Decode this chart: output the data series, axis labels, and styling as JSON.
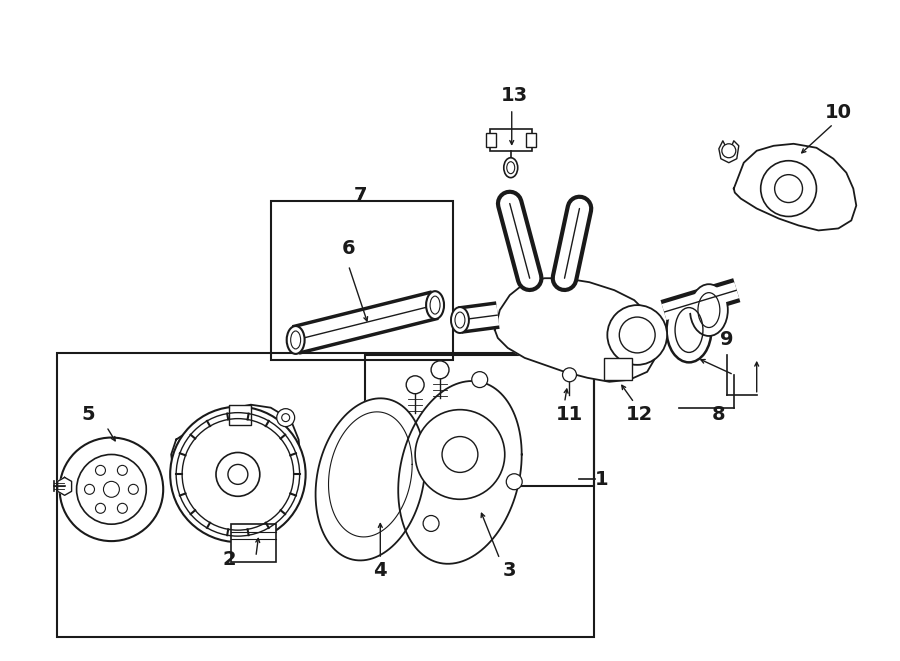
{
  "bg_color": "#ffffff",
  "line_color": "#1a1a1a",
  "fig_width": 9.0,
  "fig_height": 6.61,
  "dpi": 100,
  "xlim": [
    0,
    900
  ],
  "ylim": [
    0,
    661
  ]
}
